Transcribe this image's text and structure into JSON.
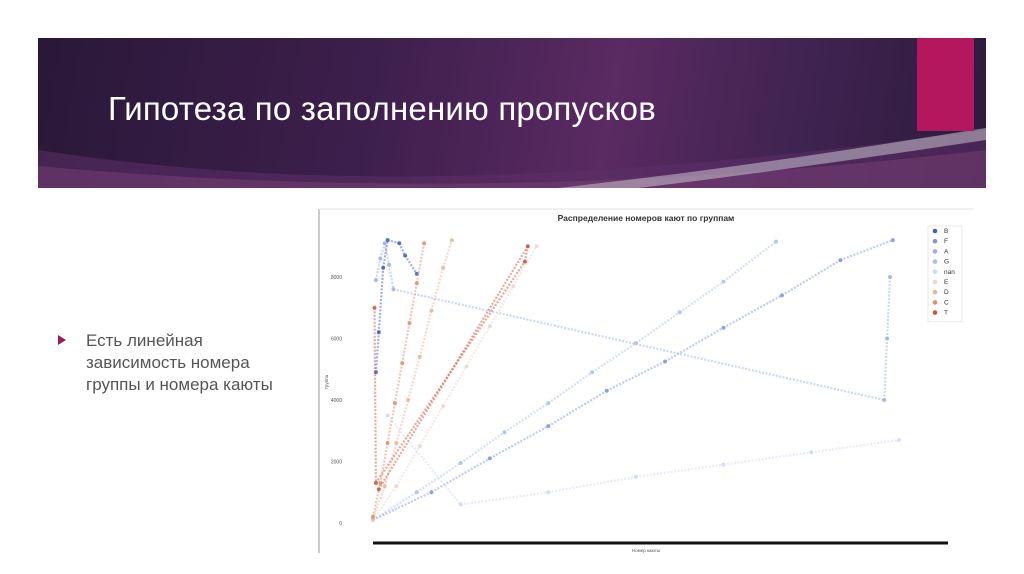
{
  "slide": {
    "title": "Гипотеза по заполнению пропусков",
    "bullet": "Есть линейная зависимость номера группы и номера каюты",
    "colors": {
      "banner": "#3d1f4c",
      "accent": "#b5175e",
      "bullet": "#9b1b5e"
    }
  },
  "chart_data": {
    "type": "scatter",
    "title": "Распределение номеров кают по группам",
    "xlabel": "Номер каюты",
    "ylabel": "Группа",
    "yticks": [
      "0",
      "2000",
      "4000",
      "6000",
      "8000"
    ],
    "ylim": [
      0,
      9300
    ],
    "xlim": [
      0,
      1900
    ],
    "legend_position": "top-right",
    "series": [
      {
        "name": "B",
        "color": "#3f5fc8",
        "points": [
          [
            10,
            4900
          ],
          [
            20,
            6200
          ],
          [
            35,
            8300
          ],
          [
            50,
            9200
          ],
          [
            90,
            9100
          ],
          [
            110,
            8700
          ],
          [
            150,
            8100
          ]
        ]
      },
      {
        "name": "F",
        "color": "#7f97e2",
        "points": [
          [
            0,
            100
          ],
          [
            200,
            1000
          ],
          [
            400,
            2100
          ],
          [
            600,
            3150
          ],
          [
            800,
            4300
          ],
          [
            1000,
            5250
          ],
          [
            1200,
            6350
          ],
          [
            1400,
            7400
          ],
          [
            1600,
            8550
          ],
          [
            1780,
            9200
          ]
        ]
      },
      {
        "name": "A",
        "color": "#9ab0ea",
        "points": [
          [
            10,
            7900
          ],
          [
            25,
            8600
          ],
          [
            40,
            9100
          ],
          [
            55,
            8400
          ],
          [
            70,
            7600
          ],
          [
            1750,
            4000
          ],
          [
            1760,
            6000
          ],
          [
            1770,
            8000
          ]
        ]
      },
      {
        "name": "G",
        "color": "#a9bff0",
        "points": [
          [
            0,
            100
          ],
          [
            150,
            1000
          ],
          [
            300,
            1950
          ],
          [
            450,
            2950
          ],
          [
            600,
            3900
          ],
          [
            750,
            4900
          ],
          [
            900,
            5850
          ],
          [
            1050,
            6850
          ],
          [
            1200,
            7850
          ],
          [
            1380,
            9150
          ]
        ]
      },
      {
        "name": "nan",
        "color": "#cfd9f4",
        "points": [
          [
            50,
            3500
          ],
          [
            300,
            600
          ],
          [
            600,
            1000
          ],
          [
            900,
            1500
          ],
          [
            1200,
            1900
          ],
          [
            1500,
            2300
          ],
          [
            1800,
            2700
          ]
        ]
      },
      {
        "name": "E",
        "color": "#ead7d0",
        "points": [
          [
            0,
            100
          ],
          [
            80,
            1200
          ],
          [
            160,
            2500
          ],
          [
            240,
            3800
          ],
          [
            320,
            5100
          ],
          [
            400,
            6400
          ],
          [
            480,
            7700
          ],
          [
            560,
            9000
          ]
        ]
      },
      {
        "name": "D",
        "color": "#eeb49a",
        "points": [
          [
            0,
            150
          ],
          [
            40,
            1200
          ],
          [
            80,
            2600
          ],
          [
            120,
            4000
          ],
          [
            160,
            5400
          ],
          [
            200,
            6900
          ],
          [
            240,
            8300
          ],
          [
            270,
            9200
          ]
        ]
      },
      {
        "name": "C",
        "color": "#e08f72",
        "points": [
          [
            0,
            200
          ],
          [
            25,
            1300
          ],
          [
            50,
            2600
          ],
          [
            75,
            3900
          ],
          [
            100,
            5200
          ],
          [
            125,
            6500
          ],
          [
            150,
            7800
          ],
          [
            175,
            9100
          ]
        ]
      },
      {
        "name": "T",
        "color": "#c9553a",
        "points": [
          [
            5,
            7000
          ],
          [
            10,
            1300
          ],
          [
            520,
            8500
          ],
          [
            530,
            9000
          ],
          [
            20,
            1100
          ]
        ]
      }
    ]
  }
}
